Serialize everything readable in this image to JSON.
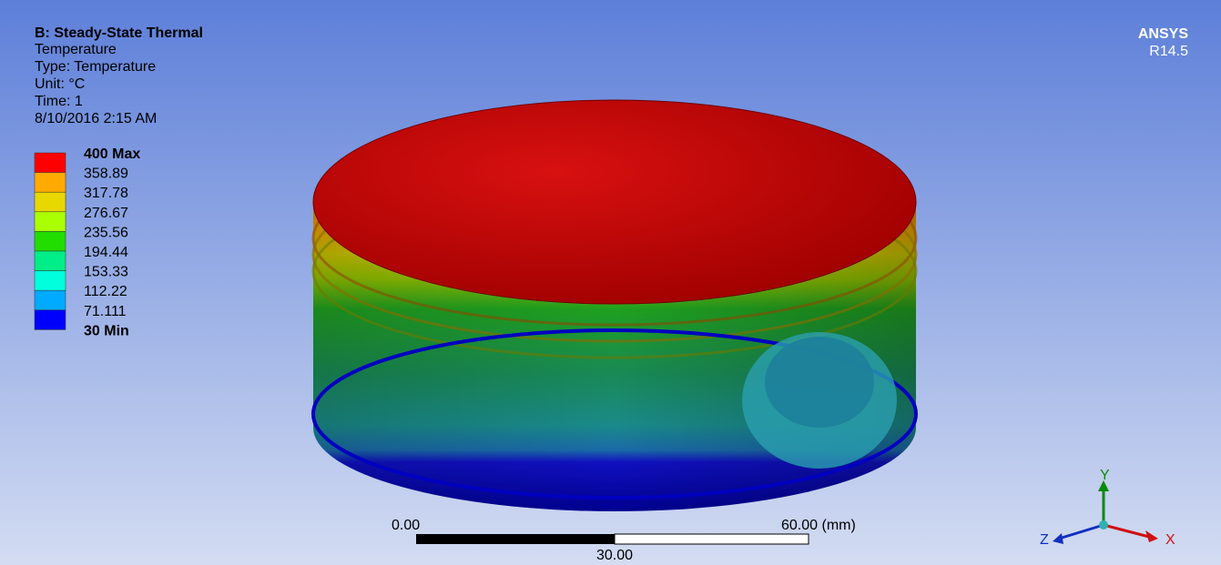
{
  "header": {
    "title": "B: Steady-State Thermal",
    "lines": [
      "Temperature",
      "Type: Temperature",
      "Unit: °C",
      "Time: 1",
      "8/10/2016 2:15 AM"
    ]
  },
  "legend": {
    "labels": [
      "400 Max",
      "358.89",
      "317.78",
      "276.67",
      "235.56",
      "194.44",
      "153.33",
      "112.22",
      "71.111",
      "30 Min"
    ],
    "colors": [
      "#ff0000",
      "#ffaa00",
      "#e8d800",
      "#aaff00",
      "#22dd00",
      "#00ee88",
      "#00ffdd",
      "#00aaff",
      "#0000ff"
    ]
  },
  "logo": {
    "name": "ANSYS",
    "version": "R14.5"
  },
  "scale_bar": {
    "start": "0.00",
    "end": "60.00 (mm)",
    "middle": "30.00"
  },
  "triad": {
    "y": "Y",
    "z": "Z",
    "x": "X"
  }
}
